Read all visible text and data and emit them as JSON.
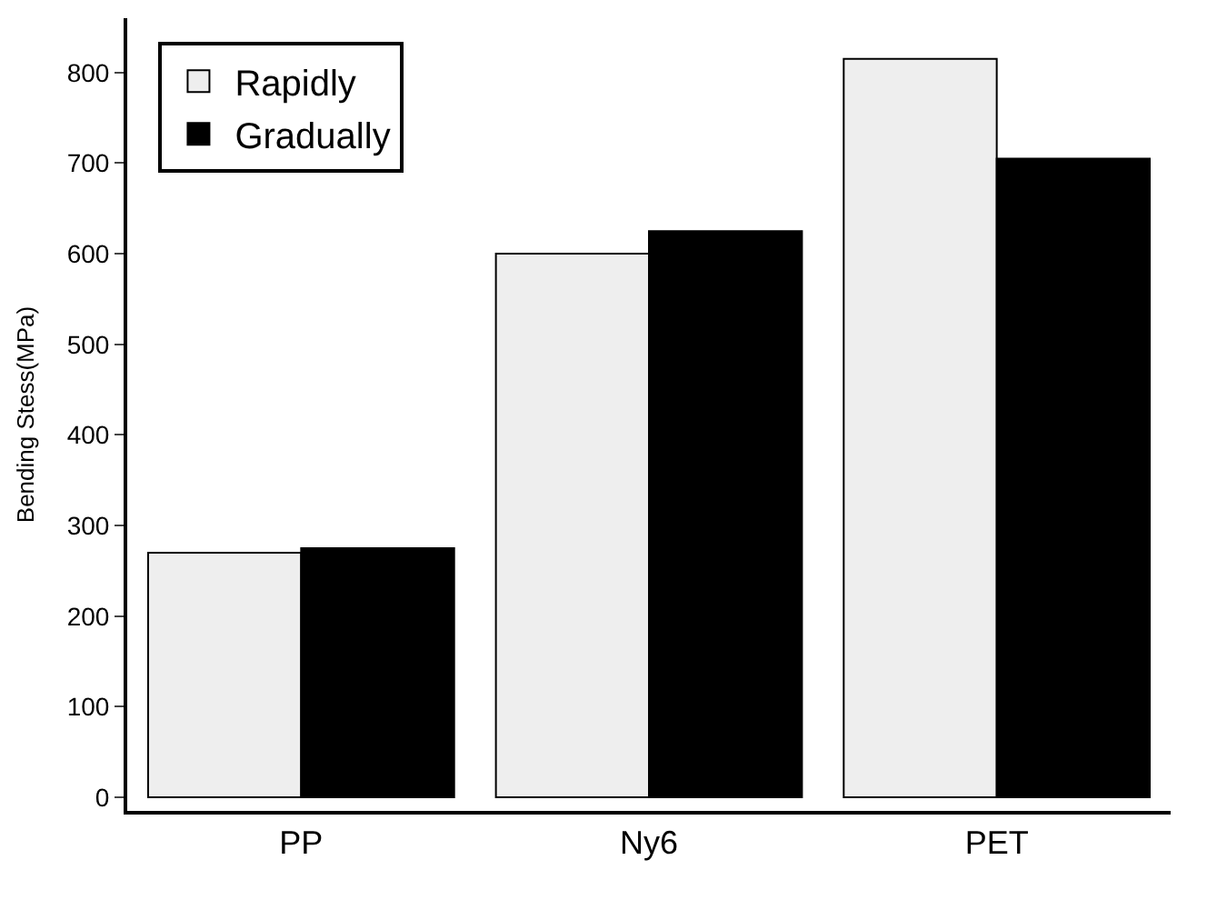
{
  "chart_data": {
    "type": "bar",
    "ylabel": "Bending Stess(MPa)",
    "categories": [
      "PP",
      "Ny6",
      "PET"
    ],
    "series": [
      {
        "name": "Rapidly",
        "color": "#eeeeee",
        "values": [
          270,
          600,
          815
        ]
      },
      {
        "name": "Gradually",
        "color": "#000000",
        "values": [
          275,
          625,
          705
        ]
      }
    ],
    "ylim": [
      -15,
      860
    ],
    "yticks": [
      0,
      100,
      200,
      300,
      400,
      500,
      600,
      700,
      800
    ],
    "legend": "top left"
  }
}
